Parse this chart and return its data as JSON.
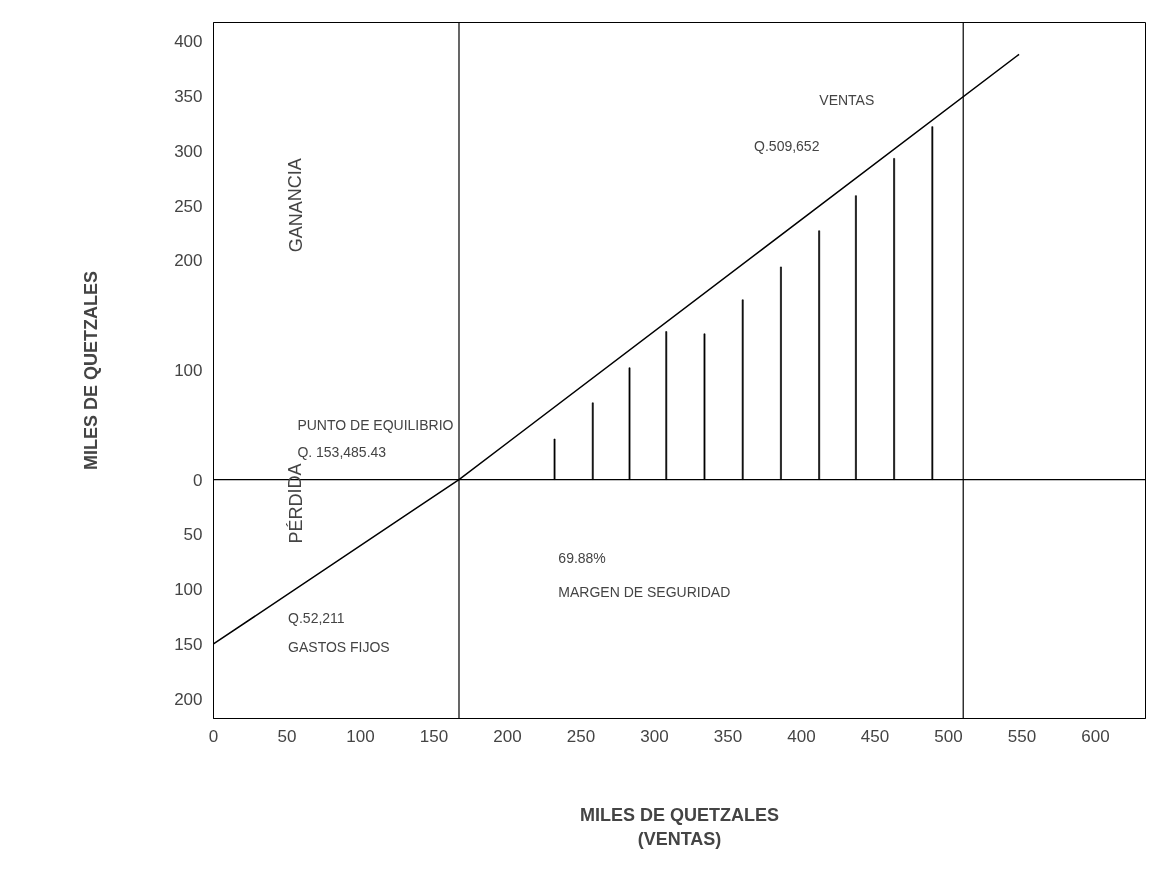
{
  "chart_data": {
    "type": "line",
    "xlabel": "MILES DE QUETZALES\n(VENTAS)",
    "ylabel": "MILES DE QUETZALES",
    "xlim": [
      0,
      634
    ],
    "ylim": [
      -218,
      417
    ],
    "xticks": [
      0,
      50,
      100,
      150,
      200,
      250,
      300,
      350,
      400,
      450,
      500,
      550,
      600
    ],
    "yticks": [
      {
        "value": -200,
        "label": "200"
      },
      {
        "value": -150,
        "label": "150"
      },
      {
        "value": -100,
        "label": "100"
      },
      {
        "value": -50,
        "label": "50"
      },
      0,
      100,
      200,
      250,
      300,
      350,
      400
    ],
    "grid": false,
    "marker": "none",
    "line_style": "solid",
    "series": [
      {
        "color": "#000000",
        "x": [
          0,
          167,
          548
        ],
        "values": [
          -150,
          0,
          388
        ]
      },
      {
        "type": "bar",
        "color": "#000000",
        "x": [
          232,
          258,
          283,
          308,
          334,
          360,
          386,
          412,
          437,
          463,
          489
        ],
        "values": [
          37,
          70,
          102,
          135,
          133,
          164,
          194,
          227,
          259,
          293,
          322
        ]
      }
    ],
    "ref_lines": [
      {
        "axis": "y",
        "value": 0,
        "color": "#000000"
      },
      {
        "axis": "x",
        "value": 167,
        "color": "#000000"
      },
      {
        "axis": "x",
        "value": 510,
        "color": "#000000"
      }
    ],
    "annotations": [
      "GANANCIA",
      "PÉRDIDA",
      "VENTAS",
      "Q.509,652",
      "PUNTO DE EQUILIBRIO",
      "Q. 153,485.43",
      "69.88%",
      "MARGEN DE SEGURIDAD",
      "Q.52,211",
      "GASTOS FIJOS"
    ]
  }
}
